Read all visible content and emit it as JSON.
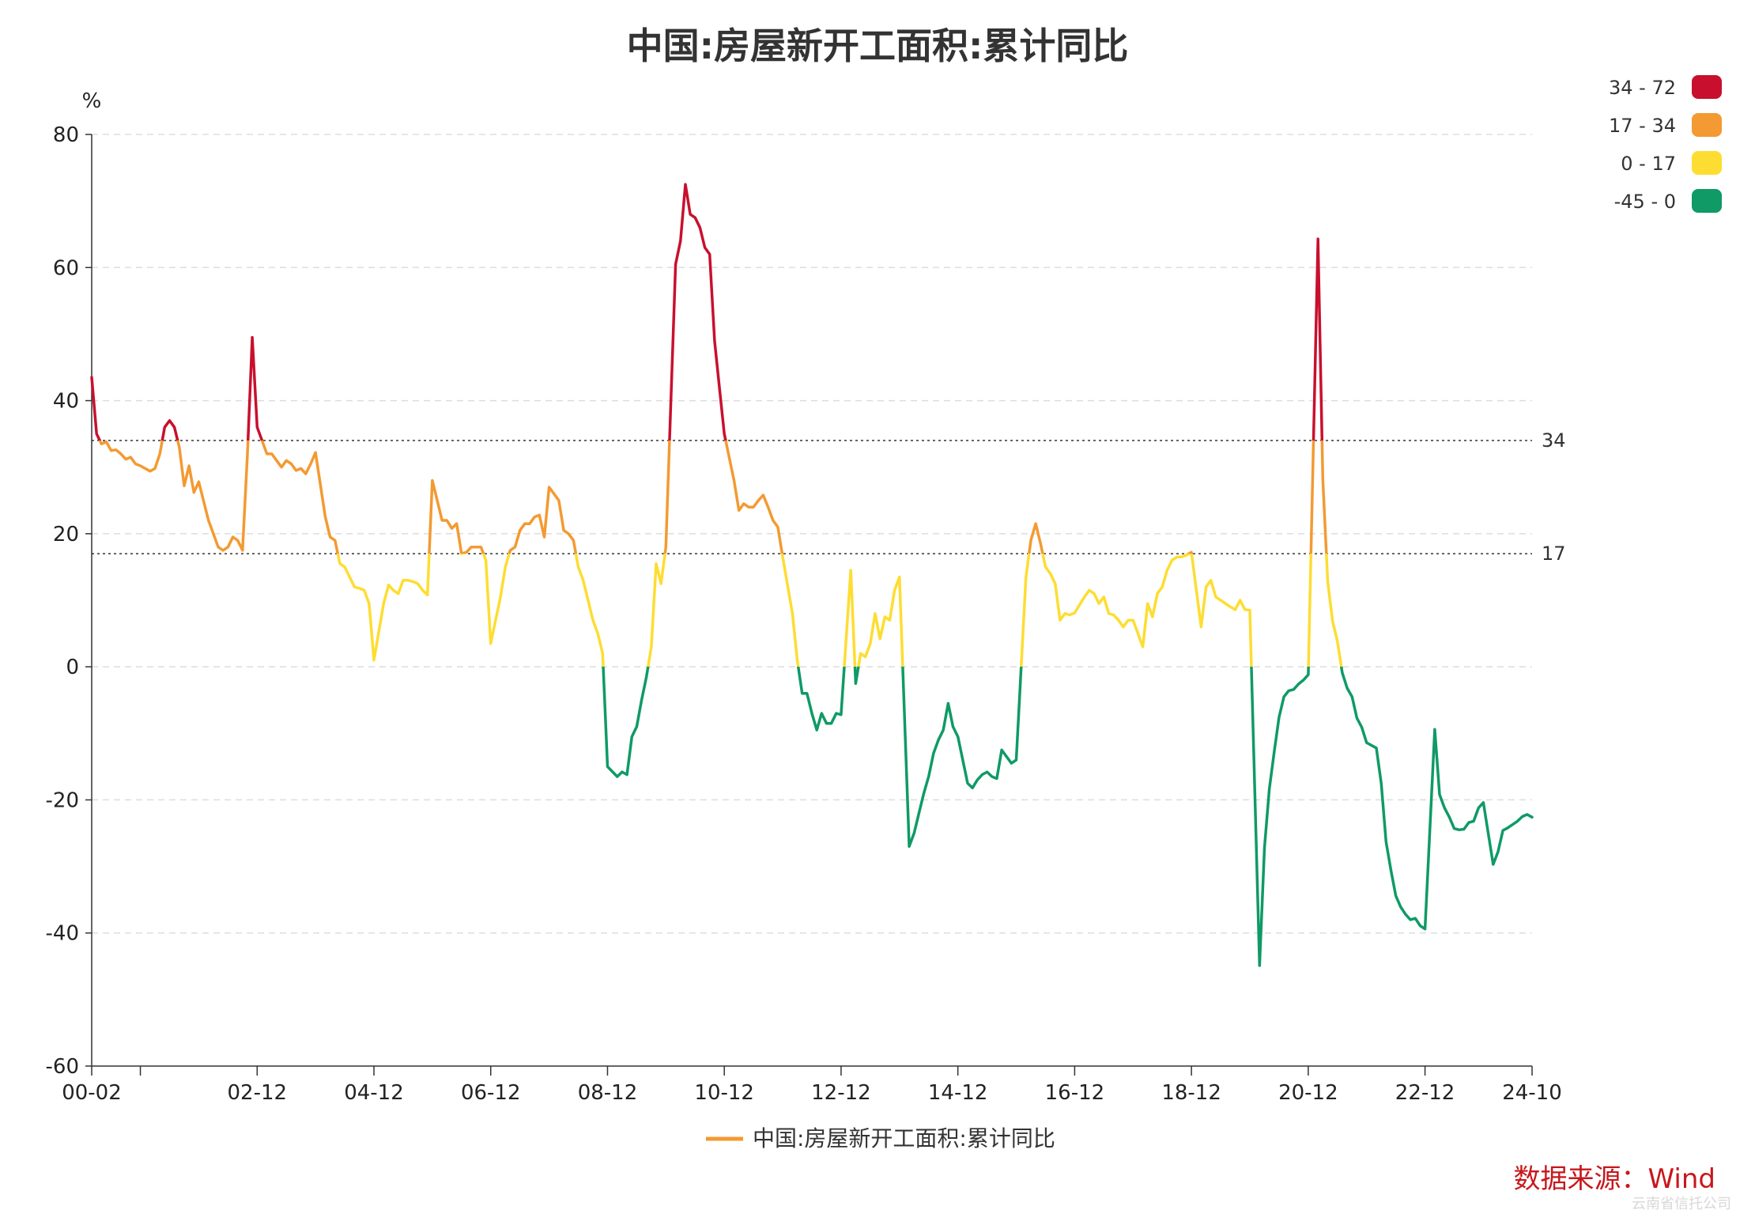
{
  "title": "中国:房屋新开工面积:累计同比",
  "source": "数据来源：Wind",
  "watermark": "云南省信托公司",
  "chart_data": {
    "type": "line",
    "title": "中国:房屋新开工面积:累计同比",
    "ylabel": "%",
    "ylim": [
      -60,
      80
    ],
    "yticks": [
      -60,
      -40,
      -20,
      0,
      20,
      40,
      60,
      80
    ],
    "xlim": [
      "2000-02",
      "2024-10"
    ],
    "xtick_labels": [
      "00-02",
      "02-12",
      "04-12",
      "06-12",
      "08-12",
      "10-12",
      "12-12",
      "14-12",
      "16-12",
      "18-12",
      "20-12",
      "22-12",
      "24-10"
    ],
    "grid": "horizontal dashed",
    "legend": "bottom-center",
    "mark_lines": [
      34,
      17
    ],
    "visual_map": [
      {
        "label": "34 - 72",
        "min": 34,
        "max": 72,
        "color": "#c8102e"
      },
      {
        "label": "17 - 34",
        "min": 17,
        "max": 34,
        "color": "#f39a32"
      },
      {
        "label": "0 - 17",
        "min": 0,
        "max": 17,
        "color": "#fddd32"
      },
      {
        "label": "-45 - 0",
        "min": -45,
        "max": 0,
        "color": "#0f9a66"
      }
    ],
    "series": [
      {
        "name": "中国:房屋新开工面积:累计同比",
        "color": "#f39a32",
        "points": [
          [
            "2000-02",
            43.5
          ],
          [
            "2000-03",
            35
          ],
          [
            "2000-04",
            33.5
          ],
          [
            "2000-05",
            33.8
          ],
          [
            "2000-06",
            32.5
          ],
          [
            "2000-07",
            32.6
          ],
          [
            "2000-08",
            32
          ],
          [
            "2000-09",
            31.2
          ],
          [
            "2000-10",
            31.5
          ],
          [
            "2000-11",
            30.5
          ],
          [
            "2000-12",
            30.2
          ],
          [
            "2001-02",
            29.4
          ],
          [
            "2001-03",
            29.8
          ],
          [
            "2001-04",
            32
          ],
          [
            "2001-05",
            36
          ],
          [
            "2001-06",
            37
          ],
          [
            "2001-07",
            36
          ],
          [
            "2001-08",
            33
          ],
          [
            "2001-09",
            27.2
          ],
          [
            "2001-10",
            30.2
          ],
          [
            "2001-11",
            26.2
          ],
          [
            "2001-12",
            27.8
          ],
          [
            "2002-02",
            22
          ],
          [
            "2002-03",
            20
          ],
          [
            "2002-04",
            18
          ],
          [
            "2002-05",
            17.5
          ],
          [
            "2002-06",
            18
          ],
          [
            "2002-07",
            19.5
          ],
          [
            "2002-08",
            19
          ],
          [
            "2002-09",
            17.5
          ],
          [
            "2002-10",
            32
          ],
          [
            "2002-11",
            49.5
          ],
          [
            "2002-12",
            36
          ],
          [
            "2003-02",
            32
          ],
          [
            "2003-03",
            32
          ],
          [
            "2003-04",
            31
          ],
          [
            "2003-05",
            30
          ],
          [
            "2003-06",
            31
          ],
          [
            "2003-07",
            30.5
          ],
          [
            "2003-08",
            29.5
          ],
          [
            "2003-09",
            29.8
          ],
          [
            "2003-10",
            29
          ],
          [
            "2003-11",
            30.5
          ],
          [
            "2003-12",
            32.2
          ],
          [
            "2004-02",
            22.5
          ],
          [
            "2004-03",
            19.5
          ],
          [
            "2004-04",
            19
          ],
          [
            "2004-05",
            15.5
          ],
          [
            "2004-06",
            15
          ],
          [
            "2004-07",
            13.5
          ],
          [
            "2004-08",
            12
          ],
          [
            "2004-09",
            11.8
          ],
          [
            "2004-10",
            11.5
          ],
          [
            "2004-11",
            9.5
          ],
          [
            "2004-12",
            1
          ],
          [
            "2005-02",
            9.5
          ],
          [
            "2005-03",
            12.3
          ],
          [
            "2005-04",
            11.5
          ],
          [
            "2005-05",
            11
          ],
          [
            "2005-06",
            13
          ],
          [
            "2005-07",
            13
          ],
          [
            "2005-08",
            12.8
          ],
          [
            "2005-09",
            12.5
          ],
          [
            "2005-10",
            11.5
          ],
          [
            "2005-11",
            10.8
          ],
          [
            "2005-12",
            28
          ],
          [
            "2006-02",
            22
          ],
          [
            "2006-03",
            22
          ],
          [
            "2006-04",
            20.8
          ],
          [
            "2006-05",
            21.5
          ],
          [
            "2006-06",
            17
          ],
          [
            "2006-07",
            17.2
          ],
          [
            "2006-08",
            18
          ],
          [
            "2006-09",
            18
          ],
          [
            "2006-10",
            18
          ],
          [
            "2006-11",
            16
          ],
          [
            "2006-12",
            3.5
          ],
          [
            "2007-02",
            10.5
          ],
          [
            "2007-03",
            15
          ],
          [
            "2007-04",
            17.5
          ],
          [
            "2007-05",
            18
          ],
          [
            "2007-06",
            20.5
          ],
          [
            "2007-07",
            21.5
          ],
          [
            "2007-08",
            21.5
          ],
          [
            "2007-09",
            22.5
          ],
          [
            "2007-10",
            22.8
          ],
          [
            "2007-11",
            19.5
          ],
          [
            "2007-12",
            27
          ],
          [
            "2008-02",
            25
          ],
          [
            "2008-03",
            20.5
          ],
          [
            "2008-04",
            20
          ],
          [
            "2008-05",
            19
          ],
          [
            "2008-06",
            15
          ],
          [
            "2008-07",
            13
          ],
          [
            "2008-08",
            10
          ],
          [
            "2008-09",
            7
          ],
          [
            "2008-10",
            5
          ],
          [
            "2008-11",
            2
          ],
          [
            "2008-12",
            -15
          ],
          [
            "2009-02",
            -16.5
          ],
          [
            "2009-03",
            -15.8
          ],
          [
            "2009-04",
            -16.2
          ],
          [
            "2009-05",
            -10.5
          ],
          [
            "2009-06",
            -9
          ],
          [
            "2009-07",
            -5
          ],
          [
            "2009-08",
            -1.5
          ],
          [
            "2009-09",
            3
          ],
          [
            "2009-10",
            15.5
          ],
          [
            "2009-11",
            12.5
          ],
          [
            "2009-12",
            18
          ],
          [
            "2010-02",
            60.5
          ],
          [
            "2010-03",
            64
          ],
          [
            "2010-04",
            72.5
          ],
          [
            "2010-05",
            68
          ],
          [
            "2010-06",
            67.5
          ],
          [
            "2010-07",
            66
          ],
          [
            "2010-08",
            63
          ],
          [
            "2010-09",
            62
          ],
          [
            "2010-10",
            49
          ],
          [
            "2010-11",
            42
          ],
          [
            "2010-12",
            35
          ],
          [
            "2011-02",
            28
          ],
          [
            "2011-03",
            23.5
          ],
          [
            "2011-04",
            24.5
          ],
          [
            "2011-05",
            24
          ],
          [
            "2011-06",
            24
          ],
          [
            "2011-07",
            25
          ],
          [
            "2011-08",
            25.8
          ],
          [
            "2011-09",
            24
          ],
          [
            "2011-10",
            22
          ],
          [
            "2011-11",
            21
          ],
          [
            "2011-12",
            16.5
          ],
          [
            "2012-02",
            8
          ],
          [
            "2012-03",
            1
          ],
          [
            "2012-04",
            -4
          ],
          [
            "2012-05",
            -4
          ],
          [
            "2012-06",
            -7
          ],
          [
            "2012-07",
            -9.5
          ],
          [
            "2012-08",
            -7
          ],
          [
            "2012-09",
            -8.5
          ],
          [
            "2012-10",
            -8.5
          ],
          [
            "2012-11",
            -7
          ],
          [
            "2012-12",
            -7.2
          ],
          [
            "2013-02",
            14.5
          ],
          [
            "2013-03",
            -2.5
          ],
          [
            "2013-04",
            2
          ],
          [
            "2013-05",
            1.5
          ],
          [
            "2013-06",
            3.5
          ],
          [
            "2013-07",
            8
          ],
          [
            "2013-08",
            4.2
          ],
          [
            "2013-09",
            7.5
          ],
          [
            "2013-10",
            7
          ],
          [
            "2013-11",
            11.5
          ],
          [
            "2013-12",
            13.5
          ],
          [
            "2014-02",
            -27
          ],
          [
            "2014-03",
            -25
          ],
          [
            "2014-04",
            -22
          ],
          [
            "2014-05",
            -19
          ],
          [
            "2014-06",
            -16.5
          ],
          [
            "2014-07",
            -13
          ],
          [
            "2014-08",
            -11
          ],
          [
            "2014-09",
            -9.5
          ],
          [
            "2014-10",
            -5.5
          ],
          [
            "2014-11",
            -9
          ],
          [
            "2014-12",
            -10.5
          ],
          [
            "2015-02",
            -17.5
          ],
          [
            "2015-03",
            -18.2
          ],
          [
            "2015-04",
            -17
          ],
          [
            "2015-05",
            -16.2
          ],
          [
            "2015-06",
            -15.8
          ],
          [
            "2015-07",
            -16.5
          ],
          [
            "2015-08",
            -16.8
          ],
          [
            "2015-09",
            -12.5
          ],
          [
            "2015-10",
            -13.5
          ],
          [
            "2015-11",
            -14.5
          ],
          [
            "2015-12",
            -14
          ],
          [
            "2016-02",
            13.5
          ],
          [
            "2016-03",
            19
          ],
          [
            "2016-04",
            21.5
          ],
          [
            "2016-05",
            18.5
          ],
          [
            "2016-06",
            15
          ],
          [
            "2016-07",
            14
          ],
          [
            "2016-08",
            12.5
          ],
          [
            "2016-09",
            7
          ],
          [
            "2016-10",
            8
          ],
          [
            "2016-11",
            7.8
          ],
          [
            "2016-12",
            8.1
          ],
          [
            "2017-02",
            10.5
          ],
          [
            "2017-03",
            11.5
          ],
          [
            "2017-04",
            11
          ],
          [
            "2017-05",
            9.5
          ],
          [
            "2017-06",
            10.5
          ],
          [
            "2017-07",
            8
          ],
          [
            "2017-08",
            7.8
          ],
          [
            "2017-09",
            7
          ],
          [
            "2017-10",
            6
          ],
          [
            "2017-11",
            7
          ],
          [
            "2017-12",
            7
          ],
          [
            "2018-02",
            3
          ],
          [
            "2018-03",
            9.5
          ],
          [
            "2018-04",
            7.5
          ],
          [
            "2018-05",
            11
          ],
          [
            "2018-06",
            12
          ],
          [
            "2018-07",
            14.5
          ],
          [
            "2018-08",
            16
          ],
          [
            "2018-09",
            16.5
          ],
          [
            "2018-10",
            16.5
          ],
          [
            "2018-11",
            16.8
          ],
          [
            "2018-12",
            17.2
          ],
          [
            "2019-02",
            6
          ],
          [
            "2019-03",
            12
          ],
          [
            "2019-04",
            13
          ],
          [
            "2019-05",
            10.5
          ],
          [
            "2019-06",
            10
          ],
          [
            "2019-07",
            9.5
          ],
          [
            "2019-08",
            9
          ],
          [
            "2019-09",
            8.6
          ],
          [
            "2019-10",
            10
          ],
          [
            "2019-11",
            8.6
          ],
          [
            "2019-12",
            8.5
          ],
          [
            "2020-02",
            -44.9
          ],
          [
            "2020-03",
            -27.2
          ],
          [
            "2020-04",
            -18.4
          ],
          [
            "2020-05",
            -12.8
          ],
          [
            "2020-06",
            -7.6
          ],
          [
            "2020-07",
            -4.5
          ],
          [
            "2020-08",
            -3.6
          ],
          [
            "2020-09",
            -3.4
          ],
          [
            "2020-10",
            -2.6
          ],
          [
            "2020-11",
            -2
          ],
          [
            "2020-12",
            -1.2
          ],
          [
            "2021-02",
            64.3
          ],
          [
            "2021-03",
            28.2
          ],
          [
            "2021-04",
            12.8
          ],
          [
            "2021-05",
            6.9
          ],
          [
            "2021-06",
            3.8
          ],
          [
            "2021-07",
            -0.9
          ],
          [
            "2021-08",
            -3.2
          ],
          [
            "2021-09",
            -4.5
          ],
          [
            "2021-10",
            -7.7
          ],
          [
            "2021-11",
            -9.1
          ],
          [
            "2021-12",
            -11.4
          ],
          [
            "2022-02",
            -12.2
          ],
          [
            "2022-03",
            -17.5
          ],
          [
            "2022-04",
            -26.3
          ],
          [
            "2022-05",
            -30.6
          ],
          [
            "2022-06",
            -34.4
          ],
          [
            "2022-07",
            -36.1
          ],
          [
            "2022-08",
            -37.2
          ],
          [
            "2022-09",
            -38
          ],
          [
            "2022-10",
            -37.8
          ],
          [
            "2022-11",
            -38.9
          ],
          [
            "2022-12",
            -39.4
          ],
          [
            "2023-02",
            -9.4
          ],
          [
            "2023-03",
            -19.2
          ],
          [
            "2023-04",
            -21.2
          ],
          [
            "2023-05",
            -22.6
          ],
          [
            "2023-06",
            -24.3
          ],
          [
            "2023-07",
            -24.5
          ],
          [
            "2023-08",
            -24.4
          ],
          [
            "2023-09",
            -23.4
          ],
          [
            "2023-10",
            -23.2
          ],
          [
            "2023-11",
            -21.2
          ],
          [
            "2023-12",
            -20.4
          ],
          [
            "2024-02",
            -29.7
          ],
          [
            "2024-03",
            -27.8
          ],
          [
            "2024-04",
            -24.6
          ],
          [
            "2024-05",
            -24.2
          ],
          [
            "2024-06",
            -23.7
          ],
          [
            "2024-07",
            -23.2
          ],
          [
            "2024-08",
            -22.5
          ],
          [
            "2024-09",
            -22.2
          ],
          [
            "2024-10",
            -22.6
          ]
        ]
      }
    ]
  }
}
